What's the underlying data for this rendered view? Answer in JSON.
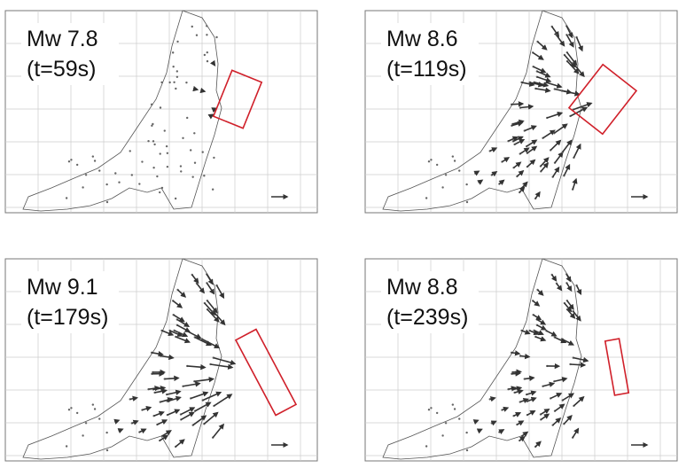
{
  "panels": [
    {
      "magnitude": "Mw 7.8",
      "time": "(t=59s)"
    },
    {
      "magnitude": "Mw 8.6",
      "time": "(t=119s)"
    },
    {
      "magnitude": "Mw 9.1",
      "time": "(t=179s)"
    },
    {
      "magnitude": "Mw 8.8",
      "time": "(t=239s)"
    }
  ]
}
